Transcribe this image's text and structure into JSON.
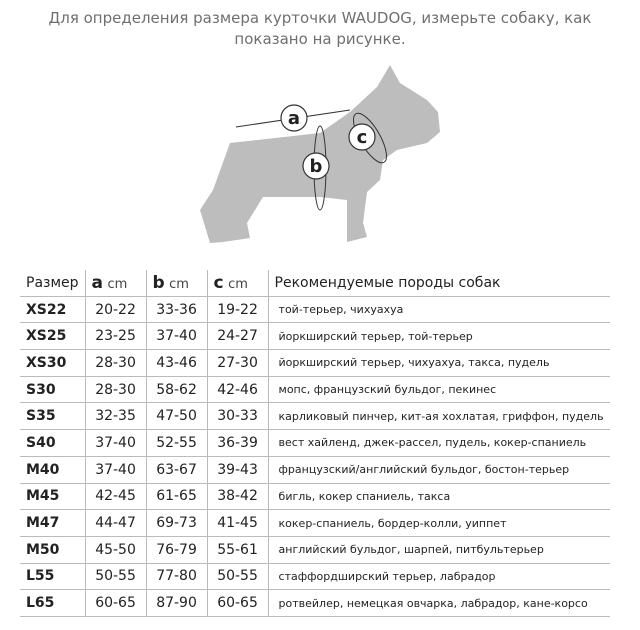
{
  "title": {
    "line1": "Для определения размера курточки WAUDOG, измерьте собаку, как",
    "line2": "показано на рисунке."
  },
  "diagram": {
    "labels": {
      "a": "a",
      "b": "b",
      "c": "c"
    },
    "fill": "#bdbdbd"
  },
  "table": {
    "headers": {
      "size": "Размер",
      "a": "a",
      "b": "b",
      "c": "c",
      "unit": "cm",
      "breeds": "Рекомендуемые породы собак"
    },
    "rows": [
      {
        "size": "XS22",
        "a": "20-22",
        "b": "33-36",
        "c": "19-22",
        "breeds": "той-терьер, чихуахуа"
      },
      {
        "size": "XS25",
        "a": "23-25",
        "b": "37-40",
        "c": "24-27",
        "breeds": "йоркширский терьер, той-терьер"
      },
      {
        "size": "XS30",
        "a": "28-30",
        "b": "43-46",
        "c": "27-30",
        "breeds": "йоркширский терьер, чихуахуа, такса, пудель"
      },
      {
        "size": "S30",
        "a": "28-30",
        "b": "58-62",
        "c": "42-46",
        "breeds": "мопс, французский бульдог, пекинес"
      },
      {
        "size": "S35",
        "a": "32-35",
        "b": "47-50",
        "c": "30-33",
        "breeds": "карликовый пинчер, кит-ая хохлатая, гриффон, пудель"
      },
      {
        "size": "S40",
        "a": "37-40",
        "b": "52-55",
        "c": "36-39",
        "breeds": "вест хайленд, джек-рассел, пудель, кокер-спаниель"
      },
      {
        "size": "M40",
        "a": "37-40",
        "b": "63-67",
        "c": "39-43",
        "breeds": "французский/английский бульдог, бостон-терьер"
      },
      {
        "size": "M45",
        "a": "42-45",
        "b": "61-65",
        "c": "38-42",
        "breeds": "бигль, кокер спаниель, такса"
      },
      {
        "size": "M47",
        "a": "44-47",
        "b": "69-73",
        "c": "41-45",
        "breeds": "кокер-спаниель, бордер-колли, уиппет"
      },
      {
        "size": "M50",
        "a": "45-50",
        "b": "76-79",
        "c": "55-61",
        "breeds": "английский бульдог, шарпей, питбультерьер"
      },
      {
        "size": "L55",
        "a": "50-55",
        "b": "77-80",
        "c": "50-55",
        "breeds": "стаффордширский терьер, лабрадор"
      },
      {
        "size": "L65",
        "a": "60-65",
        "b": "87-90",
        "c": "60-65",
        "breeds": "ротвейлер, немецкая овчарка, лабрадор, кане-корсо"
      }
    ]
  }
}
